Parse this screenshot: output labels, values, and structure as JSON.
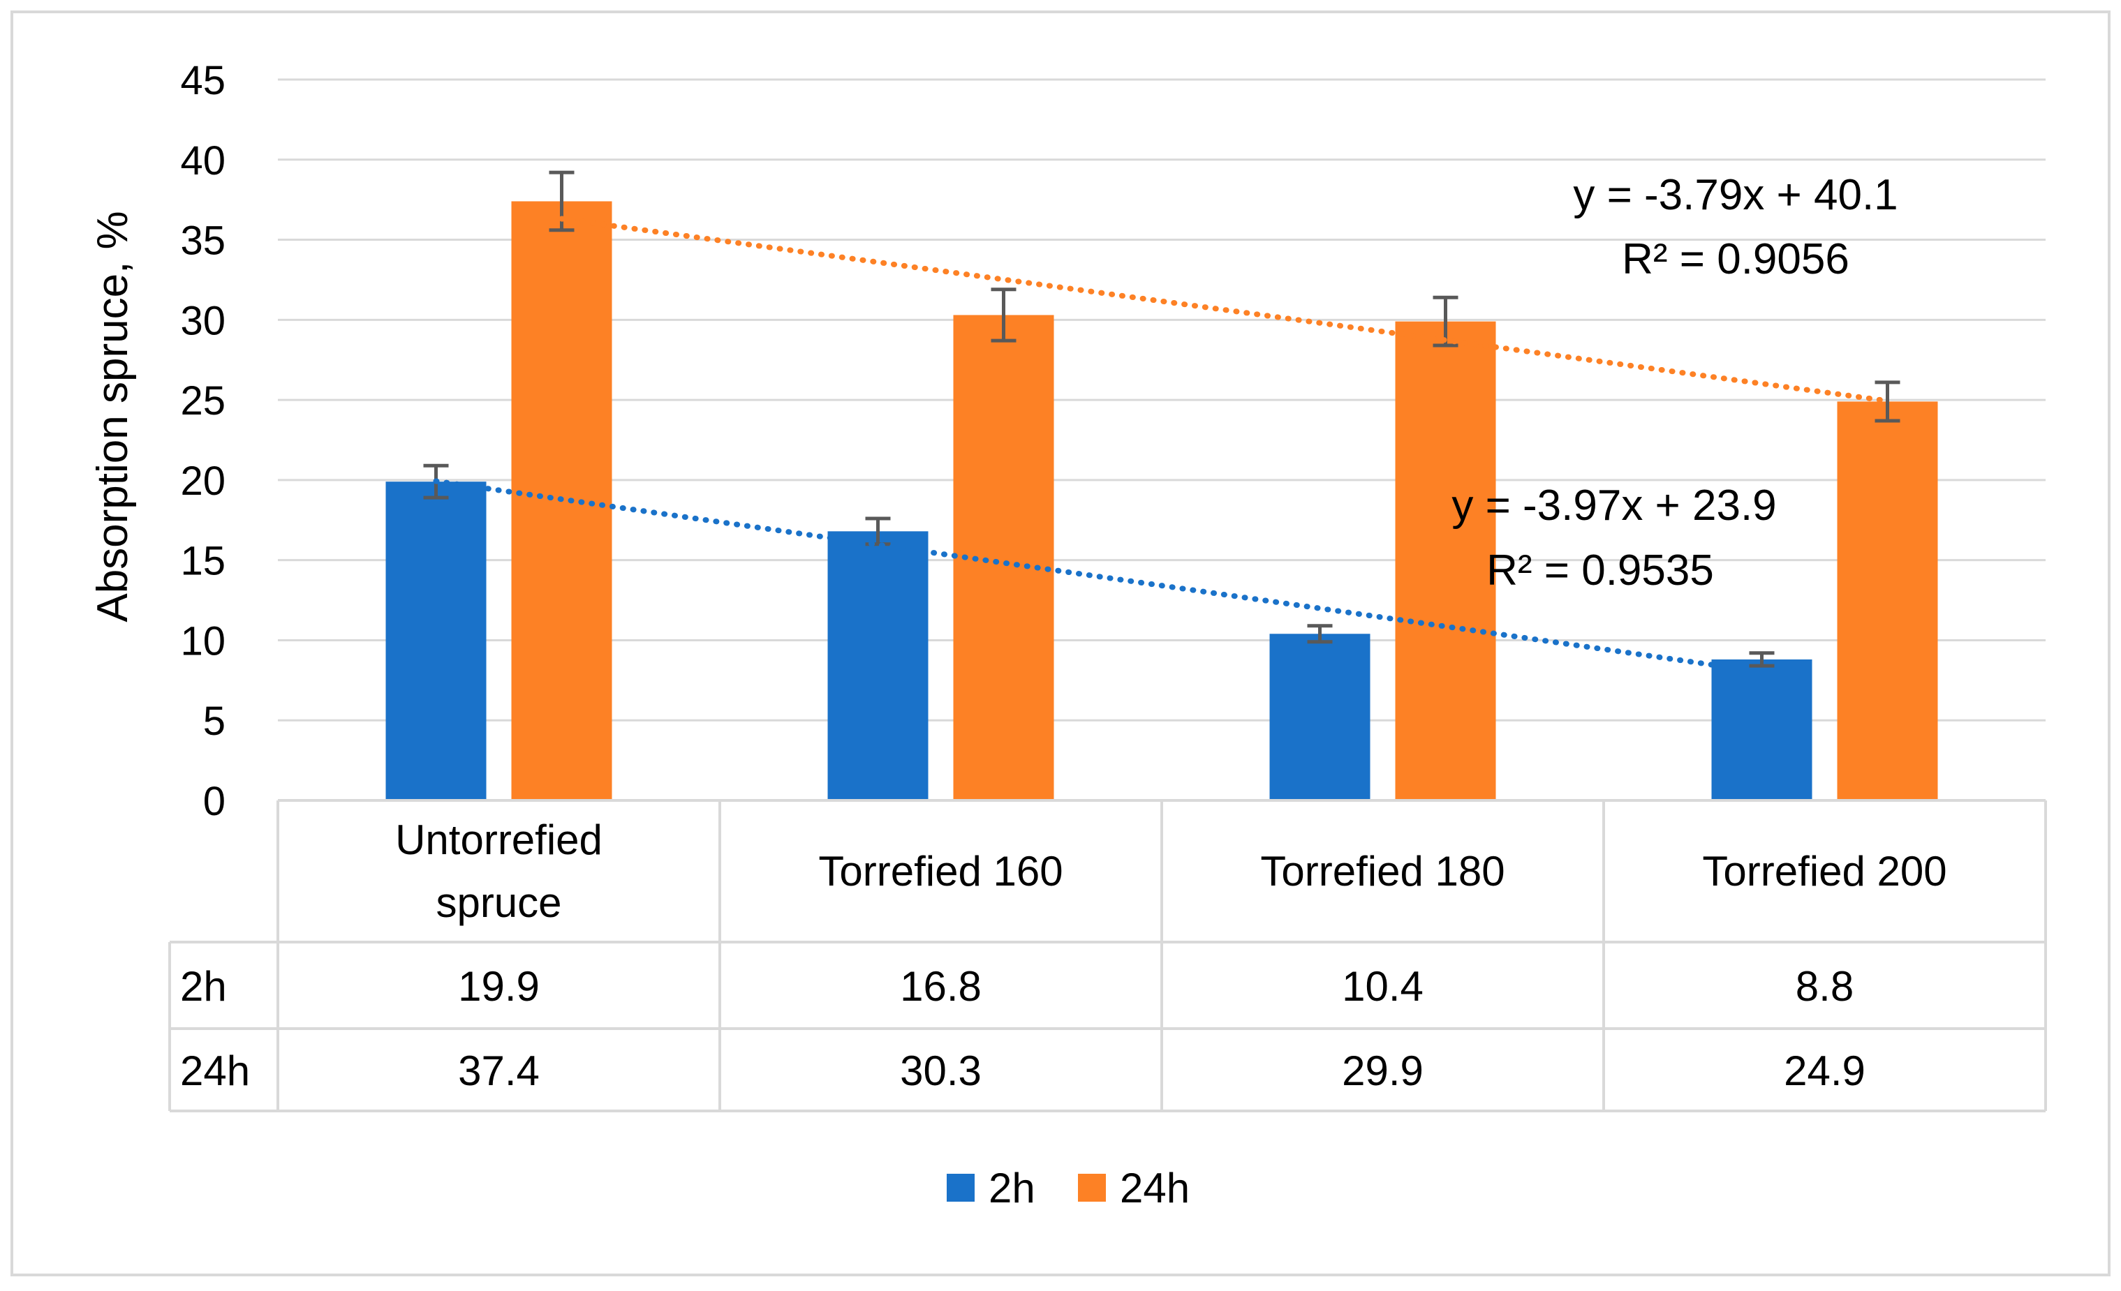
{
  "chart_data": {
    "type": "bar",
    "title": "",
    "xlabel": "",
    "ylabel": "Absorption spruce, %",
    "ylim": [
      0,
      45
    ],
    "y_ticks": [
      0,
      5,
      10,
      15,
      20,
      25,
      30,
      35,
      40,
      45
    ],
    "categories": [
      {
        "line1": "Untorrefied",
        "line2": "spruce"
      },
      {
        "line1": "Torrefied 160",
        "line2": ""
      },
      {
        "line1": "Torrefied 180",
        "line2": ""
      },
      {
        "line1": "Torrefied 200",
        "line2": ""
      }
    ],
    "series": [
      {
        "name": "2h",
        "color": "#1a72c9",
        "values": [
          "19.9",
          "16.8",
          "10.4",
          "8.8"
        ],
        "error": [
          1.0,
          0.8,
          0.5,
          0.4
        ],
        "trendline": {
          "slope": -3.97,
          "intercept": 23.9,
          "equation": "y = -3.97x + 23.9",
          "r2": "R² = 0.9535"
        }
      },
      {
        "name": "24h",
        "color": "#fd8125",
        "values": [
          "37.4",
          "30.3",
          "29.9",
          "24.9"
        ],
        "error": [
          1.8,
          1.6,
          1.5,
          1.2
        ],
        "trendline": {
          "slope": -3.79,
          "intercept": 40.1,
          "equation": "y = -3.79x + 40.1",
          "r2": "R² = 0.9056"
        }
      }
    ],
    "grid": true,
    "legend": "bottom",
    "data_table": true
  }
}
